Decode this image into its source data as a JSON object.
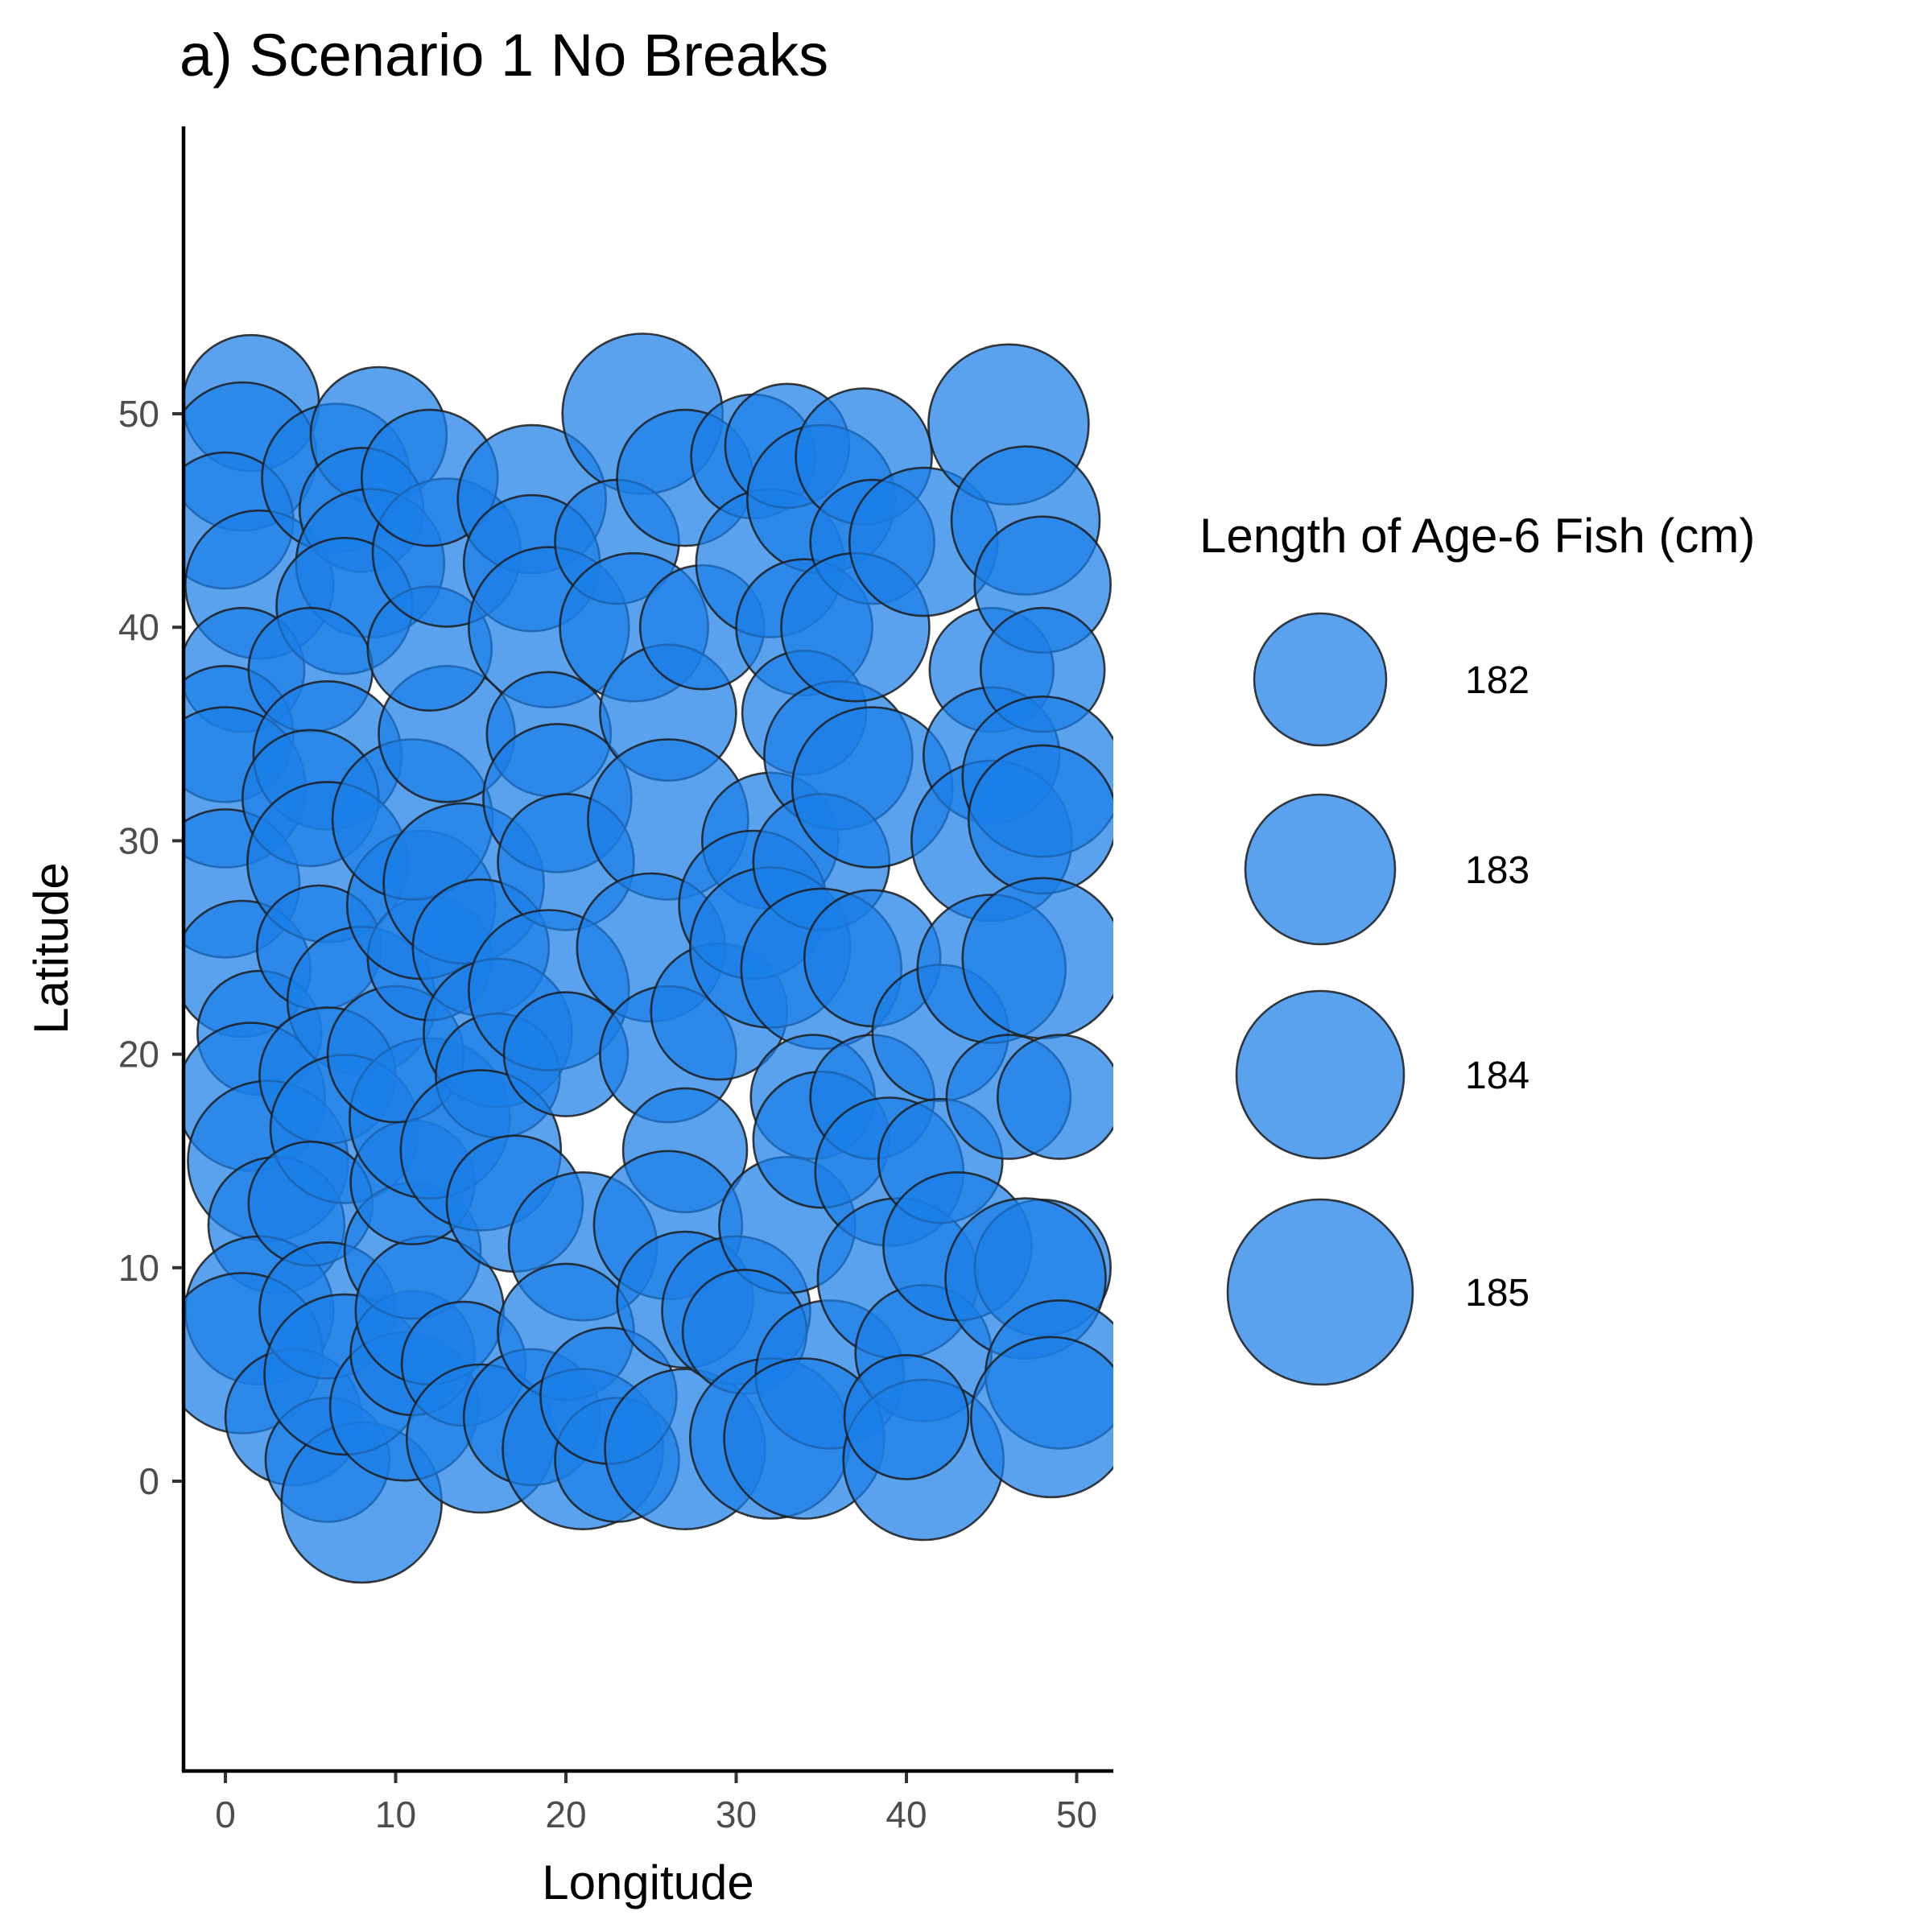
{
  "chart_data": {
    "type": "scatter",
    "title": "a) Scenario 1 No Breaks",
    "xlabel": "Longitude",
    "ylabel": "Latitude",
    "xlim": [
      -2.5,
      52.5
    ],
    "ylim": [
      -13.5,
      63.5
    ],
    "x_ticks": [
      0,
      10,
      20,
      30,
      40,
      50
    ],
    "y_ticks": [
      0,
      10,
      20,
      30,
      40,
      50
    ],
    "grid": false,
    "colors": {
      "fill": "#1a7ee8",
      "stroke": "#1c1c1c"
    },
    "legend": {
      "title": "Length of Age-6 Fish (cm)",
      "position": "right",
      "entries": [
        {
          "label": "182",
          "value": 182
        },
        {
          "label": "183",
          "value": 183
        },
        {
          "label": "184",
          "value": 184
        },
        {
          "label": "185",
          "value": 185
        }
      ]
    },
    "series": [
      {
        "size_variable": "Length of Age-6 Fish (cm)",
        "points": [
          {
            "x": 1.5,
            "y": 50.5,
            "size": 183
          },
          {
            "x": 1,
            "y": 48,
            "size": 184
          },
          {
            "x": 0,
            "y": 45,
            "size": 183
          },
          {
            "x": 2,
            "y": 42,
            "size": 184
          },
          {
            "x": 1,
            "y": 38,
            "size": 182
          },
          {
            "x": 0,
            "y": 35,
            "size": 183
          },
          {
            "x": 0,
            "y": 32.5,
            "size": 185
          },
          {
            "x": 0,
            "y": 28,
            "size": 184
          },
          {
            "x": 1,
            "y": 24,
            "size": 183
          },
          {
            "x": 2,
            "y": 21,
            "size": 182
          },
          {
            "x": 1.5,
            "y": 18,
            "size": 184
          },
          {
            "x": 2.5,
            "y": 15,
            "size": 185
          },
          {
            "x": 3,
            "y": 12,
            "size": 183
          },
          {
            "x": 2,
            "y": 8,
            "size": 184
          },
          {
            "x": 1,
            "y": 6,
            "size": 185
          },
          {
            "x": 4,
            "y": 3,
            "size": 183
          },
          {
            "x": 6,
            "y": 1,
            "size": 182
          },
          {
            "x": 8,
            "y": -1,
            "size": 185
          },
          {
            "x": 6.5,
            "y": 47,
            "size": 184
          },
          {
            "x": 9,
            "y": 49,
            "size": 183
          },
          {
            "x": 8,
            "y": 45.5,
            "size": 182
          },
          {
            "x": 8.5,
            "y": 43,
            "size": 184
          },
          {
            "x": 7,
            "y": 41,
            "size": 183
          },
          {
            "x": 5,
            "y": 38,
            "size": 182
          },
          {
            "x": 6,
            "y": 34,
            "size": 184
          },
          {
            "x": 5,
            "y": 32,
            "size": 183
          },
          {
            "x": 6,
            "y": 29,
            "size": 185
          },
          {
            "x": 5.5,
            "y": 25,
            "size": 182
          },
          {
            "x": 8,
            "y": 22.5,
            "size": 184
          },
          {
            "x": 6,
            "y": 19,
            "size": 183
          },
          {
            "x": 7,
            "y": 16.5,
            "size": 184
          },
          {
            "x": 5,
            "y": 13,
            "size": 182
          },
          {
            "x": 6,
            "y": 8,
            "size": 183
          },
          {
            "x": 7,
            "y": 5,
            "size": 185
          },
          {
            "x": 10.5,
            "y": 3.5,
            "size": 184
          },
          {
            "x": 11,
            "y": 6,
            "size": 182
          },
          {
            "x": 11,
            "y": 10.8,
            "size": 183
          },
          {
            "x": 12,
            "y": 8,
            "size": 184
          },
          {
            "x": 11,
            "y": 14,
            "size": 182
          },
          {
            "x": 12,
            "y": 17,
            "size": 185
          },
          {
            "x": 10,
            "y": 20,
            "size": 183
          },
          {
            "x": 12,
            "y": 24.5,
            "size": 182
          },
          {
            "x": 11.5,
            "y": 27,
            "size": 184
          },
          {
            "x": 11,
            "y": 31,
            "size": 185
          },
          {
            "x": 13,
            "y": 35,
            "size": 183
          },
          {
            "x": 12,
            "y": 39,
            "size": 182
          },
          {
            "x": 13,
            "y": 43.5,
            "size": 184
          },
          {
            "x": 12,
            "y": 47,
            "size": 183
          },
          {
            "x": 14,
            "y": 28,
            "size": 185
          },
          {
            "x": 15,
            "y": 25,
            "size": 183
          },
          {
            "x": 16,
            "y": 21,
            "size": 184
          },
          {
            "x": 16,
            "y": 19,
            "size": 182
          },
          {
            "x": 15,
            "y": 15.5,
            "size": 185
          },
          {
            "x": 17,
            "y": 13,
            "size": 183
          },
          {
            "x": 14,
            "y": 5.5,
            "size": 182
          },
          {
            "x": 15,
            "y": 2,
            "size": 184
          },
          {
            "x": 18,
            "y": 3,
            "size": 183
          },
          {
            "x": 18,
            "y": 46,
            "size": 184
          },
          {
            "x": 18,
            "y": 43,
            "size": 183
          },
          {
            "x": 19,
            "y": 40,
            "size": 185
          },
          {
            "x": 19,
            "y": 35,
            "size": 182
          },
          {
            "x": 19.5,
            "y": 32,
            "size": 184
          },
          {
            "x": 20,
            "y": 29,
            "size": 183
          },
          {
            "x": 19,
            "y": 23,
            "size": 185
          },
          {
            "x": 20,
            "y": 20,
            "size": 182
          },
          {
            "x": 21,
            "y": 11,
            "size": 184
          },
          {
            "x": 20,
            "y": 7,
            "size": 183
          },
          {
            "x": 21,
            "y": 1.5,
            "size": 185
          },
          {
            "x": 23,
            "y": 1,
            "size": 182
          },
          {
            "x": 22.5,
            "y": 4,
            "size": 183
          },
          {
            "x": 24.5,
            "y": 50,
            "size": 185
          },
          {
            "x": 23,
            "y": 44,
            "size": 182
          },
          {
            "x": 24,
            "y": 40,
            "size": 184
          },
          {
            "x": 26,
            "y": 36,
            "size": 183
          },
          {
            "x": 26,
            "y": 31,
            "size": 185
          },
          {
            "x": 25,
            "y": 25,
            "size": 184
          },
          {
            "x": 26,
            "y": 20,
            "size": 183
          },
          {
            "x": 27,
            "y": 15.5,
            "size": 182
          },
          {
            "x": 26,
            "y": 12,
            "size": 184
          },
          {
            "x": 27,
            "y": 8.5,
            "size": 183
          },
          {
            "x": 27,
            "y": 1.5,
            "size": 185
          },
          {
            "x": 27,
            "y": 47,
            "size": 183
          },
          {
            "x": 28,
            "y": 40,
            "size": 182
          },
          {
            "x": 29,
            "y": 22,
            "size": 183
          },
          {
            "x": 30,
            "y": 8,
            "size": 184
          },
          {
            "x": 31,
            "y": 48,
            "size": 182
          },
          {
            "x": 32,
            "y": 43,
            "size": 184
          },
          {
            "x": 32,
            "y": 30,
            "size": 183
          },
          {
            "x": 31,
            "y": 27,
            "size": 184
          },
          {
            "x": 32,
            "y": 25,
            "size": 185
          },
          {
            "x": 33,
            "y": 12,
            "size": 183
          },
          {
            "x": 30.5,
            "y": 7,
            "size": 182
          },
          {
            "x": 32,
            "y": 2,
            "size": 185
          },
          {
            "x": 33,
            "y": 48.5,
            "size": 182
          },
          {
            "x": 35,
            "y": 46,
            "size": 184
          },
          {
            "x": 34,
            "y": 40,
            "size": 183
          },
          {
            "x": 34,
            "y": 36,
            "size": 182
          },
          {
            "x": 36,
            "y": 34,
            "size": 184
          },
          {
            "x": 35,
            "y": 29,
            "size": 183
          },
          {
            "x": 35,
            "y": 24,
            "size": 185
          },
          {
            "x": 34.5,
            "y": 18,
            "size": 182
          },
          {
            "x": 35,
            "y": 16,
            "size": 183
          },
          {
            "x": 35.5,
            "y": 5,
            "size": 184
          },
          {
            "x": 34,
            "y": 2,
            "size": 185
          },
          {
            "x": 37.5,
            "y": 48,
            "size": 183
          },
          {
            "x": 38,
            "y": 44,
            "size": 182
          },
          {
            "x": 37,
            "y": 40,
            "size": 184
          },
          {
            "x": 38,
            "y": 32.5,
            "size": 185
          },
          {
            "x": 38,
            "y": 24.5,
            "size": 183
          },
          {
            "x": 38,
            "y": 18,
            "size": 182
          },
          {
            "x": 39,
            "y": 14.5,
            "size": 184
          },
          {
            "x": 39.5,
            "y": 9.5,
            "size": 185
          },
          {
            "x": 41,
            "y": 6,
            "size": 183
          },
          {
            "x": 41,
            "y": 1,
            "size": 185
          },
          {
            "x": 40,
            "y": 3,
            "size": 182
          },
          {
            "x": 41,
            "y": 44,
            "size": 184
          },
          {
            "x": 42,
            "y": 21,
            "size": 183
          },
          {
            "x": 42,
            "y": 15,
            "size": 182
          },
          {
            "x": 43,
            "y": 11,
            "size": 184
          },
          {
            "x": 45,
            "y": 38,
            "size": 182
          },
          {
            "x": 45,
            "y": 34,
            "size": 183
          },
          {
            "x": 45,
            "y": 30,
            "size": 185
          },
          {
            "x": 45,
            "y": 24,
            "size": 184
          },
          {
            "x": 46,
            "y": 18,
            "size": 182
          },
          {
            "x": 46,
            "y": 49.5,
            "size": 185
          },
          {
            "x": 47,
            "y": 45,
            "size": 184
          },
          {
            "x": 48,
            "y": 42,
            "size": 183
          },
          {
            "x": 48,
            "y": 38,
            "size": 182
          },
          {
            "x": 48,
            "y": 33,
            "size": 185
          },
          {
            "x": 48,
            "y": 31,
            "size": 184
          },
          {
            "x": 48,
            "y": 24.5,
            "size": 185
          },
          {
            "x": 49,
            "y": 18,
            "size": 182
          },
          {
            "x": 48,
            "y": 10,
            "size": 183
          },
          {
            "x": 47,
            "y": 9.5,
            "size": 185
          },
          {
            "x": 49,
            "y": 5,
            "size": 184
          },
          {
            "x": 48.5,
            "y": 3,
            "size": 185
          }
        ]
      }
    ]
  }
}
